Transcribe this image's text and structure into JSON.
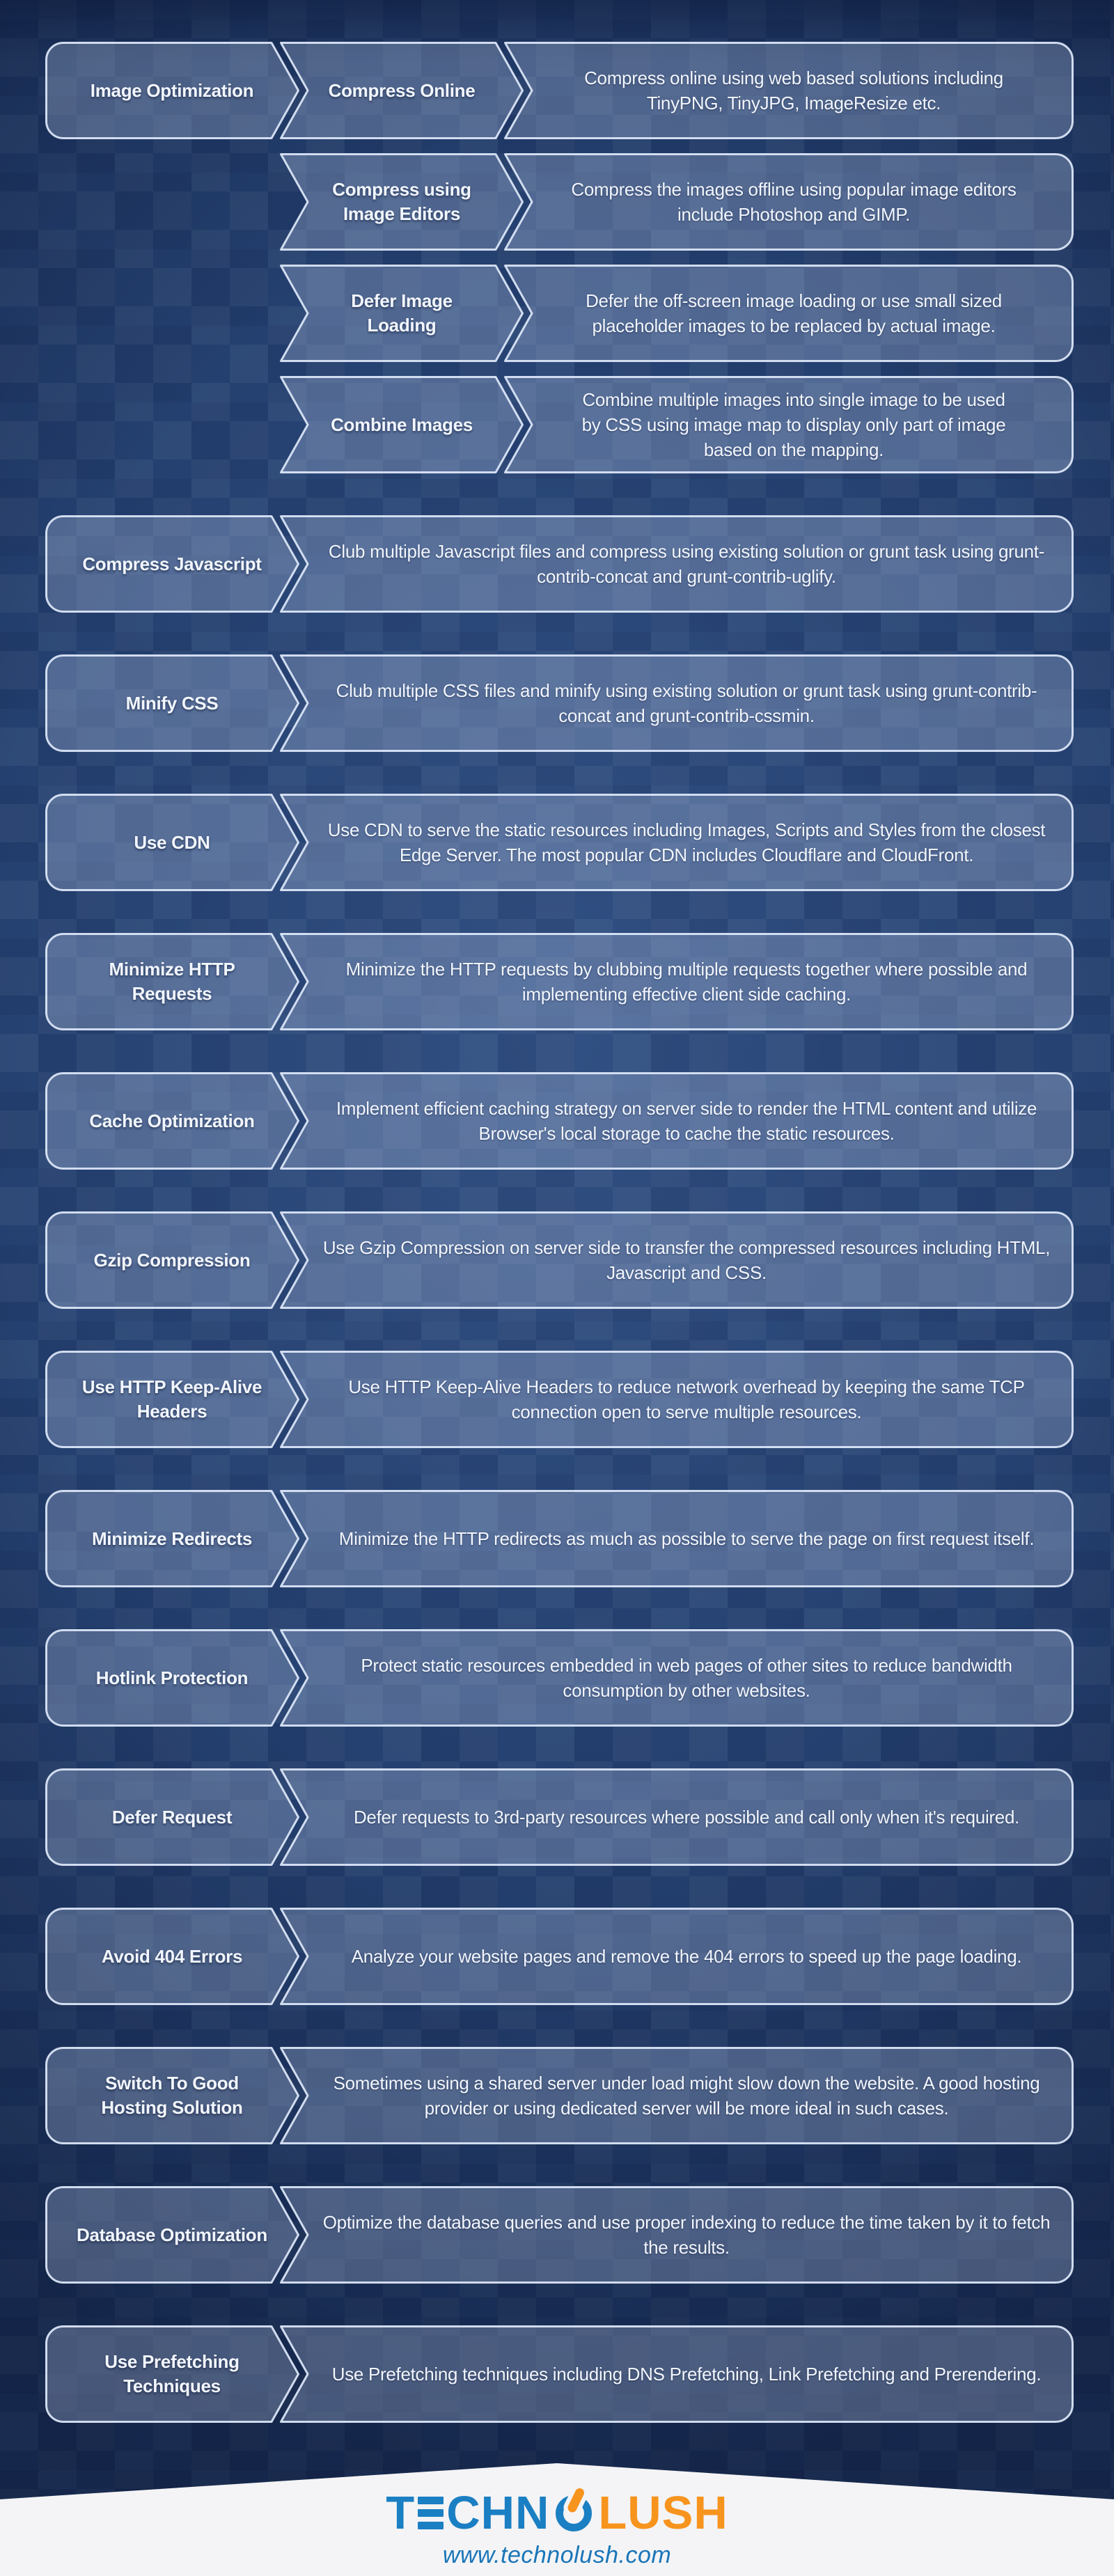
{
  "colors": {
    "background_navy": "#24406f",
    "box_border": "#dee8fa",
    "box_fill": "rgba(198,213,241,0.28)",
    "text_white": "#f2f6fd",
    "brand_blue": "#1b7fc3",
    "brand_orange": "#f7941e",
    "footer_background": "#f4f4f6",
    "url_blue": "#1a75b8"
  },
  "rows": [
    {
      "type": "group",
      "label": "Image Optimization",
      "items": [
        {
          "label": "Compress Online",
          "description": "Compress online using web based solutions including TinyPNG, TinyJPG, ImageResize etc."
        },
        {
          "label": "Compress using Image Editors",
          "description": "Compress the images offline using popular image editors include Photoshop and GIMP."
        },
        {
          "label": "Defer Image Loading",
          "description": "Defer the off-screen image loading or use small sized placeholder images to be replaced by actual image."
        },
        {
          "label": "Combine Images",
          "description": "Combine multiple images into single image to be used by CSS using image map to display only part of image based on the mapping."
        }
      ]
    },
    {
      "type": "simple",
      "label": "Compress Javascript",
      "description": "Club multiple Javascript files and compress using existing solution or grunt task using grunt-contrib-concat and grunt-contrib-uglify."
    },
    {
      "type": "simple",
      "label": "Minify CSS",
      "description": "Club multiple CSS files and minify using existing solution or grunt task using grunt-contrib-concat and grunt-contrib-cssmin."
    },
    {
      "type": "simple",
      "label": "Use CDN",
      "description": "Use CDN to serve the static resources including Images, Scripts and Styles from the closest Edge Server. The most popular CDN includes Cloudflare and CloudFront."
    },
    {
      "type": "simple",
      "label": "Minimize HTTP Requests",
      "description": "Minimize the HTTP requests by clubbing multiple requests together where possible and implementing effective client side caching."
    },
    {
      "type": "simple",
      "label": "Cache Optimization",
      "description": "Implement efficient caching strategy on server side to render the HTML content and utilize Browser's local storage to cache the static resources."
    },
    {
      "type": "simple",
      "label": "Gzip Compression",
      "description": "Use Gzip Compression on server side to transfer the compressed resources including HTML, Javascript and CSS."
    },
    {
      "type": "simple",
      "label": "Use HTTP Keep-Alive Headers",
      "description": "Use HTTP Keep-Alive Headers to reduce network overhead by keeping the same TCP connection open to serve multiple resources."
    },
    {
      "type": "simple",
      "label": "Minimize Redirects",
      "description": "Minimize the HTTP redirects as much as possible to serve the page on first request itself."
    },
    {
      "type": "simple",
      "label": "Hotlink Protection",
      "description": "Protect static resources embedded in web pages of other sites to reduce bandwidth consumption by other websites."
    },
    {
      "type": "simple",
      "label": "Defer Request",
      "description": "Defer requests to 3rd-party resources where possible and call only when it's required."
    },
    {
      "type": "simple",
      "label": "Avoid 404 Errors",
      "description": "Analyze your website pages and remove the 404 errors to speed up the page loading."
    },
    {
      "type": "simple",
      "label": "Switch To Good Hosting Solution",
      "description": "Sometimes using a shared server under load might slow down the website. A good hosting provider or using dedicated server will be more ideal in such cases."
    },
    {
      "type": "simple",
      "label": "Database Optimization",
      "description": "Optimize the database queries and use proper indexing to reduce the time taken by it to fetch the results."
    },
    {
      "type": "simple",
      "label": "Use Prefetching Techniques",
      "description": "Use Prefetching techniques including DNS Prefetching, Link Prefetching and Prerendering."
    }
  ],
  "footer": {
    "logo_part_t": "T",
    "logo_part_chn": "CHN",
    "logo_part_lush": "LUSH",
    "brand_name": "TECHNOLUSH",
    "website": "www.technolush.com"
  }
}
